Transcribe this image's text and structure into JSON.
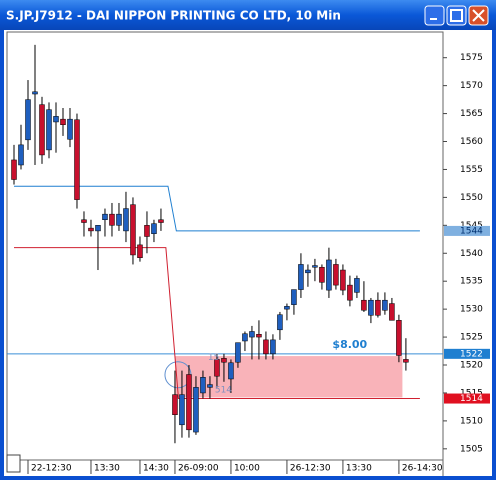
{
  "window": {
    "title": "S.JP.J7912 - DAI NIPPON PRINTING CO LTD, 10 Min"
  },
  "chart_data": {
    "type": "candlestick",
    "categories": [
      null,
      null,
      "22-12:30",
      null,
      null,
      null,
      null,
      null,
      null,
      null,
      null,
      "13:30",
      null,
      null,
      null,
      null,
      null,
      null,
      "14:30",
      null,
      null,
      null,
      null,
      "26-09:00",
      null,
      null,
      null,
      null,
      null,
      null,
      null,
      "10:00",
      null,
      null,
      null,
      null,
      null,
      null,
      null,
      "26-12:30",
      null,
      null,
      null,
      null,
      null,
      null,
      null,
      "13:30",
      null,
      null,
      null,
      null,
      null,
      null,
      null,
      "26-14:30",
      null
    ],
    "up_color": "#1f5fbf",
    "down_color": "#c8102e",
    "open": [
      1556.7,
      1555.8,
      1560.3,
      1568.5,
      1566.6,
      1558.5,
      1563.5,
      1564,
      1560.4,
      1563.9,
      1546,
      1544.5,
      1544,
      1546,
      1547,
      1545,
      1544,
      1548.7,
      1541.5,
      1545,
      1543.5,
      1546,
      null,
      1514.7,
      1509.3,
      1518.3,
      1508,
      1515,
      1516,
      1521,
      1521.2,
      1517.5,
      1520.5,
      1524.3,
      1525,
      1525.5,
      1524.5,
      1522,
      1526.3,
      1530,
      1530.8,
      1533.5,
      1536.5,
      1537.5,
      1537.5,
      1533.4,
      1538,
      1537,
      1534.3,
      1533,
      1531.6,
      1528.9,
      1531.6,
      1529.8,
      1531,
      1528,
      1521
    ],
    "high": [
      1559.4,
      1563,
      1571,
      1577.3,
      1568,
      1567,
      1567,
      1566,
      1566,
      1565,
      1547.5,
      1546,
      1545,
      1548,
      1549,
      1549,
      1551,
      1550,
      1543,
      1547.5,
      1546,
      1548,
      null,
      1519,
      1519,
      1520,
      1518,
      1519,
      1518,
      1522,
      1522,
      1521,
      1524,
      1526,
      1527,
      1528,
      1526,
      1525.5,
      1529.5,
      1531,
      1533.5,
      1540,
      1538,
      1539,
      1538,
      1541,
      1539,
      1538,
      1536,
      1536,
      1535,
      1532,
      1533,
      1533,
      1532,
      1529,
      1524.8
    ],
    "low": [
      1552.3,
      1555,
      1558.5,
      1555.8,
      1556,
      1557,
      1558,
      1561,
      1559,
      1548,
      1543,
      1543,
      1537,
      1543,
      1543,
      1544,
      1542,
      1538,
      1538.5,
      1540,
      1542,
      1544,
      null,
      1506,
      1507,
      1507,
      1507.5,
      1514,
      1514,
      1516,
      1517,
      1515,
      1519.5,
      1522.5,
      1521,
      1521,
      1521,
      1521,
      1524.5,
      1528,
      1529,
      1532,
      1534,
      1535,
      1533.5,
      1532,
      1533.5,
      1532.5,
      1530.5,
      1532,
      1529.5,
      1527.5,
      1528.5,
      1529,
      1528,
      1520.5,
      1519
    ],
    "close": [
      1553.2,
      1559.4,
      1567.5,
      1568.9,
      1557.6,
      1565.7,
      1564.5,
      1563,
      1564,
      1549.6,
      1545.5,
      1544,
      1545,
      1547,
      1545,
      1547,
      1548,
      1539.7,
      1539.2,
      1543,
      1545.3,
      1545.5,
      null,
      1511.1,
      1514.7,
      1508.4,
      1516,
      1517.8,
      1516.5,
      1518,
      1520.5,
      1520.4,
      1524,
      1525.6,
      1526,
      1525,
      1522,
      1524.5,
      1529,
      1530.5,
      1533.5,
      1538,
      1537,
      1537.8,
      1534.8,
      1538.8,
      1534.3,
      1533.4,
      1531.6,
      1535.5,
      1529.8,
      1531.6,
      1528.9,
      1531.6,
      1528,
      1521.7,
      1520.5
    ],
    "xlim": [
      -1,
      61.3
    ],
    "ylim": [
      1503,
      1579.6
    ],
    "yticks": [
      1505,
      1510,
      1515,
      1520,
      1525,
      1530,
      1535,
      1540,
      1545,
      1550,
      1555,
      1560,
      1565,
      1570,
      1575
    ],
    "indicator_lines": [
      {
        "color": "#1f7fd0",
        "x": [
          0,
          22,
          23.2,
          58
        ],
        "values": [
          1552,
          1552,
          1544,
          1544
        ]
      },
      {
        "color": "#d02030",
        "x": [
          0,
          21.7,
          23.5,
          58
        ],
        "values": [
          1541,
          1541,
          1514,
          1514
        ]
      }
    ],
    "levels": [
      {
        "value": 1544,
        "color": "#7fb0e0",
        "text_color": "#003070"
      },
      {
        "value": 1522,
        "color": "#1f7fd0",
        "text_color": "#ffffff"
      },
      {
        "value": 1514,
        "color": "#e01020",
        "text_color": "#ffffff"
      }
    ],
    "price_line": {
      "value": 1522,
      "color": "#3a8fd8"
    },
    "zone": {
      "x": [
        23,
        55.5
      ],
      "values": [
        1521.6,
        1514.2
      ],
      "color": "#f7a0a8"
    },
    "annotations": [
      {
        "text": "$8.00",
        "x": 45.5,
        "y": 1523.6,
        "color": "#1f7fd0"
      },
      {
        "text": "15",
        "x": 27.7,
        "y": 1521.3,
        "color": "#8090c0"
      },
      {
        "text": "514",
        "x": 28.7,
        "y": 1515.5,
        "color": "#8090c0"
      }
    ]
  }
}
